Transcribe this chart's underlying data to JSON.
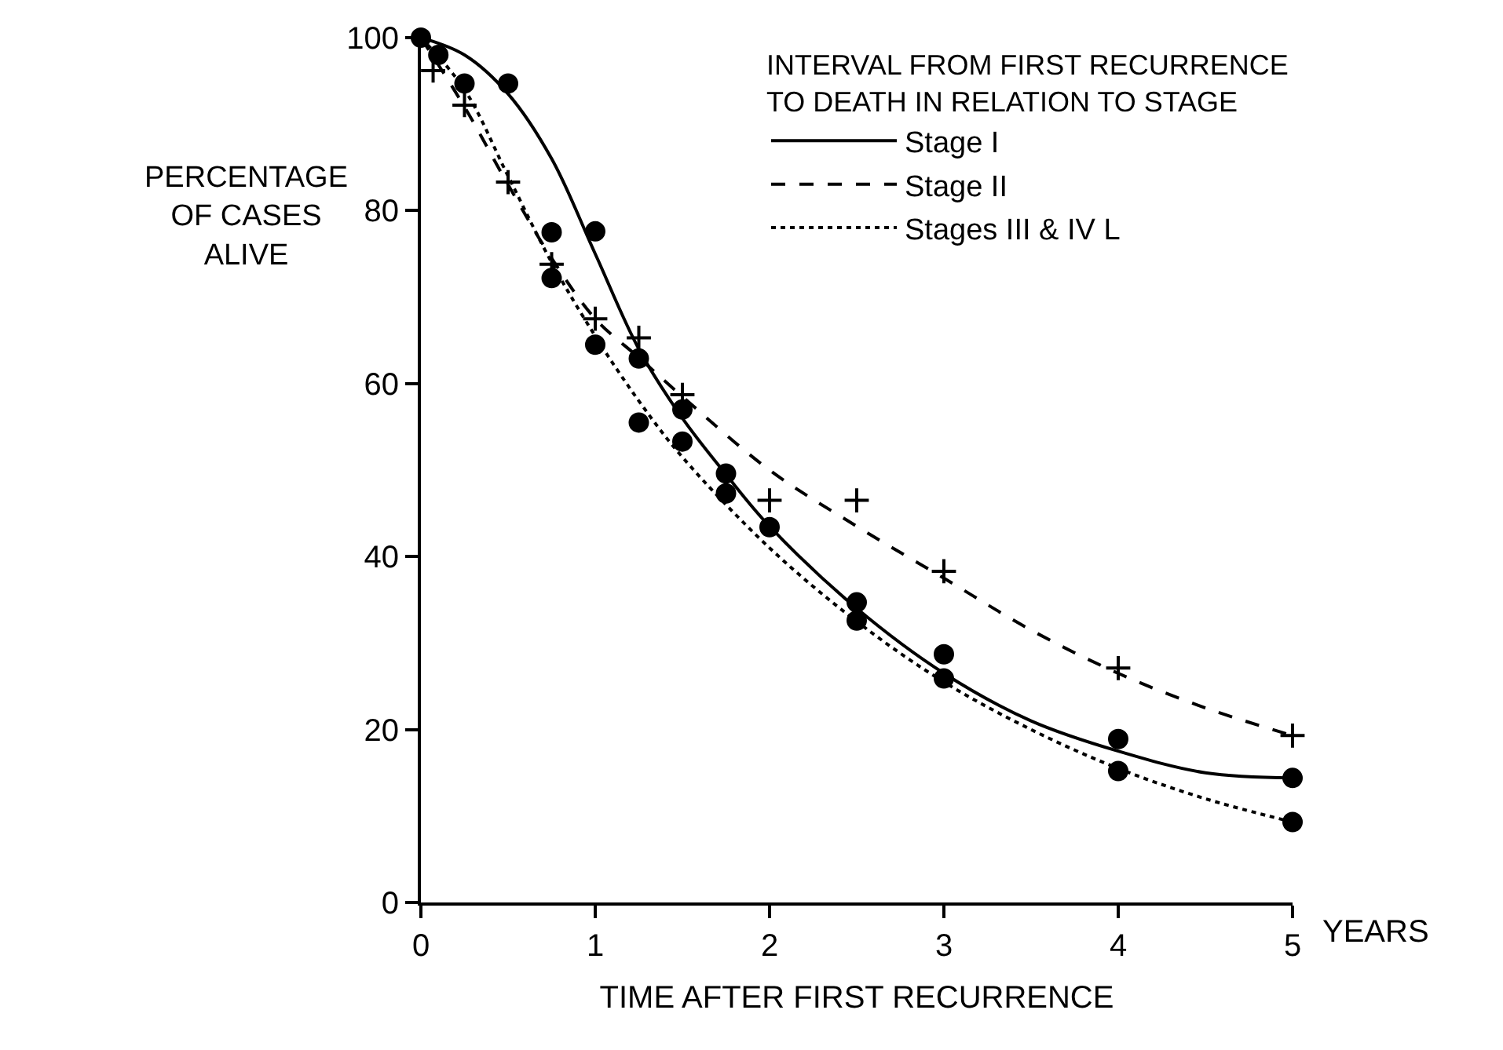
{
  "chart_data": {
    "type": "line",
    "xlabel": "TIME AFTER FIRST RECURRENCE",
    "ylabel": "PERCENTAGE OF CASES ALIVE",
    "legend_title": "INTERVAL FROM FIRST RECURRENCE TO DEATH IN RELATION TO STAGE",
    "annotations": [
      "YEARS"
    ],
    "xlim": [
      0,
      5
    ],
    "xticks": [
      0,
      1,
      2,
      3,
      4,
      5
    ],
    "ylim": [
      0,
      100
    ],
    "yticks": [
      0,
      20,
      40,
      60,
      80,
      100
    ],
    "legend": "top right",
    "series": [
      {
        "type": "scatter",
        "color": "#000000",
        "marker": "circle",
        "x": [
          0,
          0.5,
          0.75,
          1,
          1.25,
          1.5,
          1.75,
          2,
          2.5,
          3,
          4,
          5
        ],
        "values": [
          100,
          94.7,
          77.5,
          77.6,
          62.9,
          57,
          49.6,
          43.4,
          34.7,
          28.7,
          18.9,
          14.4
        ]
      },
      {
        "name": "Stage I",
        "color": "#000000",
        "line_style": "solid",
        "x": [
          0,
          0.25,
          0.5,
          0.75,
          1,
          1.25,
          1.5,
          1.75,
          2,
          2.5,
          3,
          3.5,
          4,
          4.5,
          5
        ],
        "values": [
          100,
          98,
          93.5,
          86,
          75,
          64,
          56,
          49.5,
          43.5,
          34,
          26.5,
          21,
          17.5,
          15,
          14.4
        ]
      },
      {
        "type": "scatter",
        "color": "#000000",
        "marker": "cross",
        "x": [
          0.07,
          0.25,
          0.5,
          0.75,
          1,
          1.25,
          1.5,
          2,
          2.5,
          3,
          4,
          5
        ],
        "values": [
          96.2,
          92.2,
          83.3,
          73.8,
          67.5,
          65.3,
          58.7,
          46.5,
          46.5,
          38.3,
          27.1,
          19.3
        ]
      },
      {
        "name": "Stage II",
        "color": "#000000",
        "line_style": "dashed",
        "x": [
          0,
          0.25,
          0.5,
          0.75,
          1,
          1.25,
          1.5,
          2,
          2.5,
          3,
          3.5,
          4,
          4.5,
          5
        ],
        "values": [
          100,
          92,
          83,
          74.5,
          67.5,
          63,
          58.5,
          50,
          43.5,
          37.5,
          31.5,
          26.5,
          22.5,
          19.3
        ]
      },
      {
        "type": "scatter",
        "color": "#000000",
        "marker": "circle",
        "x": [
          0.1,
          0.25,
          0.75,
          1,
          1.25,
          1.5,
          1.75,
          2.5,
          3,
          4,
          5
        ],
        "values": [
          98,
          94.7,
          72.2,
          64.5,
          55.5,
          53.3,
          47.3,
          32.6,
          25.9,
          15.2,
          9.3
        ]
      },
      {
        "name": "Stages III & IV L",
        "color": "#000000",
        "line_style": "dotted",
        "x": [
          0,
          0.25,
          0.5,
          0.75,
          1,
          1.25,
          1.5,
          2,
          2.5,
          3,
          3.5,
          4,
          4.5,
          5
        ],
        "values": [
          100,
          94,
          84,
          74,
          65.5,
          58,
          51.5,
          41,
          32.5,
          25.5,
          20,
          15.5,
          12,
          9.3
        ]
      }
    ]
  }
}
